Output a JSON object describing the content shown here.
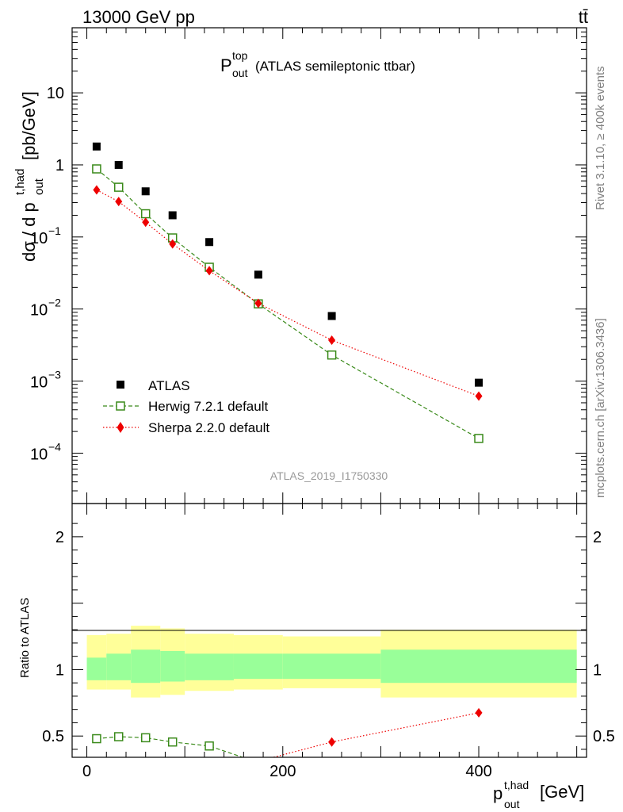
{
  "header": {
    "left": "13000 GeV pp",
    "right": "tt̄"
  },
  "side_labels": {
    "rivet": "Rivet 3.1.10, ≥ 400k events",
    "mcplots": "mcplots.cern.ch [arXiv:1306.3436]"
  },
  "chart_data": [
    {
      "type": "scatter",
      "panel": "main",
      "title": {
        "main": "P",
        "sup": "top",
        "sub": "out",
        "suffix": "(ATLAS semileptonic ttbar)"
      },
      "watermark": "ATLAS_2019_I1750330",
      "ylabel": {
        "main": "dσ / d p",
        "sup": "t,had",
        "sub": "out",
        "suffix": "[pb/GeV]"
      },
      "yscale": "log",
      "ylim": [
        2e-05,
        80
      ],
      "xlim": [
        -15,
        510
      ],
      "yticks": [
        {
          "v": 10,
          "label": "10"
        },
        {
          "v": 1,
          "label": "1"
        },
        {
          "v": 0.1,
          "base": "10",
          "exp": "−1"
        },
        {
          "v": 0.01,
          "base": "10",
          "exp": "−2"
        },
        {
          "v": 0.001,
          "base": "10",
          "exp": "−3"
        },
        {
          "v": 0.0001,
          "base": "10",
          "exp": "−4"
        }
      ],
      "legend_position": "lower-left",
      "series": [
        {
          "name": "ATLAS",
          "color": "#000000",
          "marker": "filled-square",
          "x": [
            10,
            32.5,
            60,
            87.5,
            125,
            175,
            250,
            400
          ],
          "y": [
            1.8,
            1.0,
            0.43,
            0.2,
            0.085,
            0.03,
            0.008,
            0.00095
          ]
        },
        {
          "name": "Herwig 7.2.1 default",
          "color": "#3a8a1a",
          "marker": "open-square",
          "line": "dashed",
          "x": [
            10,
            32.5,
            60,
            87.5,
            125,
            175,
            250,
            400
          ],
          "y": [
            0.88,
            0.49,
            0.21,
            0.097,
            0.038,
            0.0118,
            0.0023,
            0.00016
          ]
        },
        {
          "name": "Sherpa 2.2.0 default",
          "color": "#ee0000",
          "marker": "filled-diamond",
          "line": "dotted",
          "x": [
            10,
            32.5,
            60,
            87.5,
            125,
            175,
            250,
            400
          ],
          "y": [
            0.45,
            0.31,
            0.16,
            0.08,
            0.034,
            0.012,
            0.0037,
            0.00062
          ]
        }
      ]
    },
    {
      "type": "line",
      "panel": "ratio",
      "ylabel": "Ratio to ATLAS",
      "ylim": [
        0.34,
        2.25
      ],
      "xlim": [
        -15,
        510
      ],
      "xlabel": {
        "main": "p",
        "sup": "t,had",
        "sub": "out",
        "suffix": "[GeV]"
      },
      "xticks": [
        0,
        200,
        400
      ],
      "yticks": [
        0.5,
        1,
        2
      ],
      "bands": [
        {
          "x0": 0,
          "x1": 20,
          "inner": [
            0.92,
            1.09
          ],
          "outer": [
            0.85,
            1.26
          ]
        },
        {
          "x0": 20,
          "x1": 45,
          "inner": [
            0.92,
            1.12
          ],
          "outer": [
            0.85,
            1.27
          ]
        },
        {
          "x0": 45,
          "x1": 75,
          "inner": [
            0.9,
            1.15
          ],
          "outer": [
            0.79,
            1.33
          ]
        },
        {
          "x0": 75,
          "x1": 100,
          "inner": [
            0.91,
            1.14
          ],
          "outer": [
            0.81,
            1.31
          ]
        },
        {
          "x0": 100,
          "x1": 150,
          "inner": [
            0.92,
            1.12
          ],
          "outer": [
            0.84,
            1.27
          ]
        },
        {
          "x0": 150,
          "x1": 200,
          "inner": [
            0.93,
            1.12
          ],
          "outer": [
            0.85,
            1.26
          ]
        },
        {
          "x0": 200,
          "x1": 300,
          "inner": [
            0.93,
            1.12
          ],
          "outer": [
            0.86,
            1.25
          ]
        },
        {
          "x0": 300,
          "x1": 500,
          "inner": [
            0.9,
            1.15
          ],
          "outer": [
            0.79,
            1.3
          ]
        }
      ],
      "series": [
        {
          "name": "Herwig 7.2.1 default",
          "color": "#3a8a1a",
          "marker": "open-square",
          "line": "dashed",
          "x": [
            10,
            32.5,
            60,
            87.5,
            125,
            175
          ],
          "y": [
            0.48,
            0.495,
            0.487,
            0.455,
            0.425,
            0.3
          ]
        },
        {
          "name": "Sherpa 2.2.0 default",
          "color": "#ee0000",
          "marker": "filled-diamond",
          "line": "dotted",
          "x": [
            175,
            250,
            400
          ],
          "y": [
            0.31,
            0.455,
            0.675
          ]
        }
      ]
    }
  ]
}
